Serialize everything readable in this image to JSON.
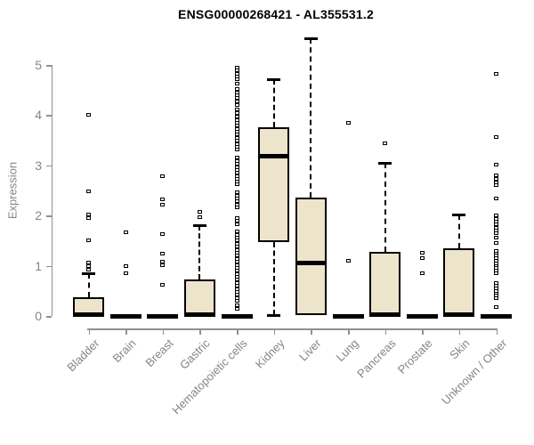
{
  "chart_data": {
    "type": "boxplot",
    "title": "ENSG00000268421 - AL355531.2",
    "xlabel": "",
    "ylabel": "Expression",
    "ylim": [
      0,
      5.6
    ],
    "yticks": [
      0,
      1,
      2,
      3,
      4,
      5
    ],
    "grid": false,
    "legend": null,
    "categories": [
      "Bladder",
      "Brain",
      "Breast",
      "Gastric",
      "Hematopoietic cells",
      "Kidney",
      "Liver",
      "Lung",
      "Pancreas",
      "Prostate",
      "Skin",
      "Unknown / Other"
    ],
    "boxes": [
      {
        "category": "Bladder",
        "q1": 0,
        "median": 0.02,
        "q3": 0.37,
        "whisker_low": null,
        "whisker_high": 0.85,
        "outliers": [
          4.0,
          2.48,
          2.02,
          1.95,
          1.5,
          1.07,
          1.0,
          0.93
        ]
      },
      {
        "category": "Brain",
        "q1": 0,
        "median": 0,
        "q3": 0.02,
        "whisker_low": null,
        "whisker_high": null,
        "outliers": [
          1.67,
          0.99,
          0.85
        ]
      },
      {
        "category": "Breast",
        "q1": 0,
        "median": 0,
        "q3": 0.02,
        "whisker_low": null,
        "whisker_high": null,
        "outliers": [
          2.78,
          2.32,
          2.21,
          1.63,
          1.24,
          1.08,
          1.02,
          0.62
        ]
      },
      {
        "category": "Gastric",
        "q1": 0,
        "median": 0.02,
        "q3": 0.73,
        "whisker_low": null,
        "whisker_high": 1.81,
        "outliers": [
          2.07,
          1.97
        ]
      },
      {
        "category": "Hematopoietic cells",
        "q1": 0,
        "median": 0,
        "q3": 0.02,
        "whisker_low": null,
        "whisker_high": null,
        "outliers": [
          4.95,
          4.89,
          4.83,
          4.77,
          4.71,
          4.62,
          4.52,
          4.46,
          4.4,
          4.34,
          4.28,
          4.2,
          4.12,
          4.05,
          3.97,
          3.91,
          3.85,
          3.79,
          3.73,
          3.67,
          3.61,
          3.55,
          3.49,
          3.43,
          3.37,
          3.31,
          3.15,
          3.09,
          3.03,
          2.97,
          2.91,
          2.85,
          2.79,
          2.73,
          2.67,
          2.62,
          2.46,
          2.4,
          2.34,
          2.28,
          2.22,
          2.16,
          1.95,
          1.89,
          1.83,
          1.68,
          1.62,
          1.56,
          1.5,
          1.44,
          1.38,
          1.32,
          1.26,
          1.2,
          1.14,
          1.08,
          1.02,
          0.96,
          0.9,
          0.84,
          0.78,
          0.72,
          0.66,
          0.6,
          0.54,
          0.48,
          0.42,
          0.36,
          0.3,
          0.22,
          0.15
        ]
      },
      {
        "category": "Kidney",
        "q1": 1.47,
        "median": 3.19,
        "q3": 3.76,
        "whisker_low": 0.02,
        "whisker_high": 4.72,
        "outliers": []
      },
      {
        "category": "Liver",
        "q1": 0.02,
        "median": 1.05,
        "q3": 2.36,
        "whisker_low": null,
        "whisker_high": 5.53,
        "outliers": []
      },
      {
        "category": "Lung",
        "q1": 0,
        "median": 0,
        "q3": 0.02,
        "whisker_low": null,
        "whisker_high": null,
        "outliers": [
          3.85,
          1.1
        ]
      },
      {
        "category": "Pancreas",
        "q1": 0,
        "median": 0.02,
        "q3": 1.28,
        "whisker_low": null,
        "whisker_high": 3.05,
        "outliers": [
          3.44
        ]
      },
      {
        "category": "Prostate",
        "q1": 0,
        "median": 0,
        "q3": 0.02,
        "whisker_low": null,
        "whisker_high": null,
        "outliers": [
          1.26,
          1.16,
          0.85
        ]
      },
      {
        "category": "Skin",
        "q1": 0,
        "median": 0.02,
        "q3": 1.35,
        "whisker_low": null,
        "whisker_high": 2.02,
        "outliers": []
      },
      {
        "category": "Unknown / Other",
        "q1": 0,
        "median": 0,
        "q3": 0.02,
        "whisker_low": null,
        "whisker_high": null,
        "outliers": [
          4.82,
          3.56,
          3.01,
          2.8,
          2.73,
          2.66,
          2.6,
          2.34,
          2.0,
          1.94,
          1.88,
          1.82,
          1.76,
          1.7,
          1.65,
          1.56,
          1.45,
          1.3,
          1.25,
          1.2,
          1.15,
          1.1,
          1.05,
          1.0,
          0.95,
          0.9,
          0.85,
          0.65,
          0.6,
          0.55,
          0.5,
          0.45,
          0.4,
          0.35,
          0.18
        ]
      }
    ],
    "colors": {
      "box_fill": "#ece5cb",
      "box_line": "#000000",
      "axis_line": "#909090",
      "axis_text": "#858585",
      "title_text": "#000000",
      "background": "#ffffff"
    }
  }
}
